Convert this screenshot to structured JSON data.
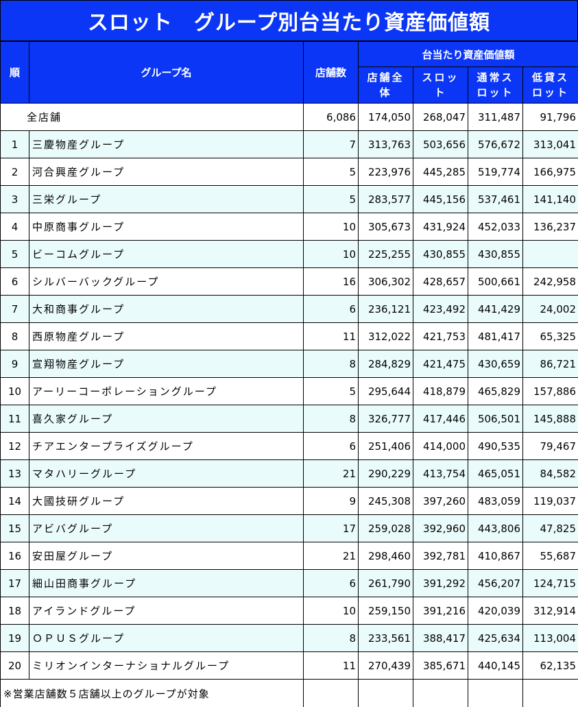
{
  "title": "スロット　グループ別台当たり資産価値額",
  "table": {
    "header": {
      "rank": "順",
      "name": "グループ名",
      "stores": "店舗数",
      "group": "台当たり資産価値額",
      "sub": [
        "店舗全体",
        "スロット",
        "通常スロット",
        "低貸スロット"
      ]
    },
    "all_row": [
      "全店舗",
      "6,086",
      "174,050",
      "268,047",
      "311,487",
      "91,796"
    ],
    "rows": [
      [
        "1",
        "三慶物産グループ",
        "7",
        "313,763",
        "503,656",
        "576,672",
        "313,041"
      ],
      [
        "2",
        "河合興産グループ",
        "5",
        "223,976",
        "445,285",
        "519,774",
        "166,975"
      ],
      [
        "3",
        "三栄グループ",
        "5",
        "283,577",
        "445,156",
        "537,461",
        "141,140"
      ],
      [
        "4",
        "中原商事グループ",
        "10",
        "305,673",
        "431,924",
        "452,033",
        "136,237"
      ],
      [
        "5",
        "ビーコムグループ",
        "10",
        "225,255",
        "430,855",
        "430,855",
        null
      ],
      [
        "6",
        "シルバーバックグループ",
        "16",
        "306,302",
        "428,657",
        "500,661",
        "242,958"
      ],
      [
        "7",
        "大和商事グループ",
        "6",
        "236,121",
        "423,492",
        "441,429",
        "24,002"
      ],
      [
        "8",
        "西原物産グループ",
        "11",
        "312,022",
        "421,753",
        "481,417",
        "65,325"
      ],
      [
        "9",
        "宣翔物産グループ",
        "8",
        "284,829",
        "421,475",
        "430,659",
        "86,721"
      ],
      [
        "10",
        "アーリーコーポレーショングループ",
        "5",
        "295,644",
        "418,879",
        "465,829",
        "157,886"
      ],
      [
        "11",
        "喜久家グループ",
        "8",
        "326,777",
        "417,446",
        "506,501",
        "145,888"
      ],
      [
        "12",
        "チアエンタープライズグループ",
        "6",
        "251,406",
        "414,000",
        "490,535",
        "79,467"
      ],
      [
        "13",
        "マタハリーグループ",
        "21",
        "290,229",
        "413,754",
        "465,051",
        "84,582"
      ],
      [
        "14",
        "大國技研グループ",
        "9",
        "245,308",
        "397,260",
        "483,059",
        "119,037"
      ],
      [
        "15",
        "アビバグループ",
        "17",
        "259,028",
        "392,960",
        "443,806",
        "47,825"
      ],
      [
        "16",
        "安田屋グループ",
        "21",
        "298,460",
        "392,781",
        "410,867",
        "55,687"
      ],
      [
        "17",
        "細山田商事グループ",
        "6",
        "261,790",
        "391,292",
        "456,207",
        "124,715"
      ],
      [
        "18",
        "アイランドグループ",
        "10",
        "259,150",
        "391,216",
        "420,039",
        "312,914"
      ],
      [
        "19",
        "ＯＰＵＳグループ",
        "8",
        "233,561",
        "388,417",
        "425,634",
        "113,004"
      ],
      [
        "20",
        "ミリオンインターナショナルグループ",
        "11",
        "270,439",
        "385,671",
        "440,145",
        "62,135"
      ]
    ],
    "footnote": "※営業店舗数５店舗以上のグループが対象"
  }
}
